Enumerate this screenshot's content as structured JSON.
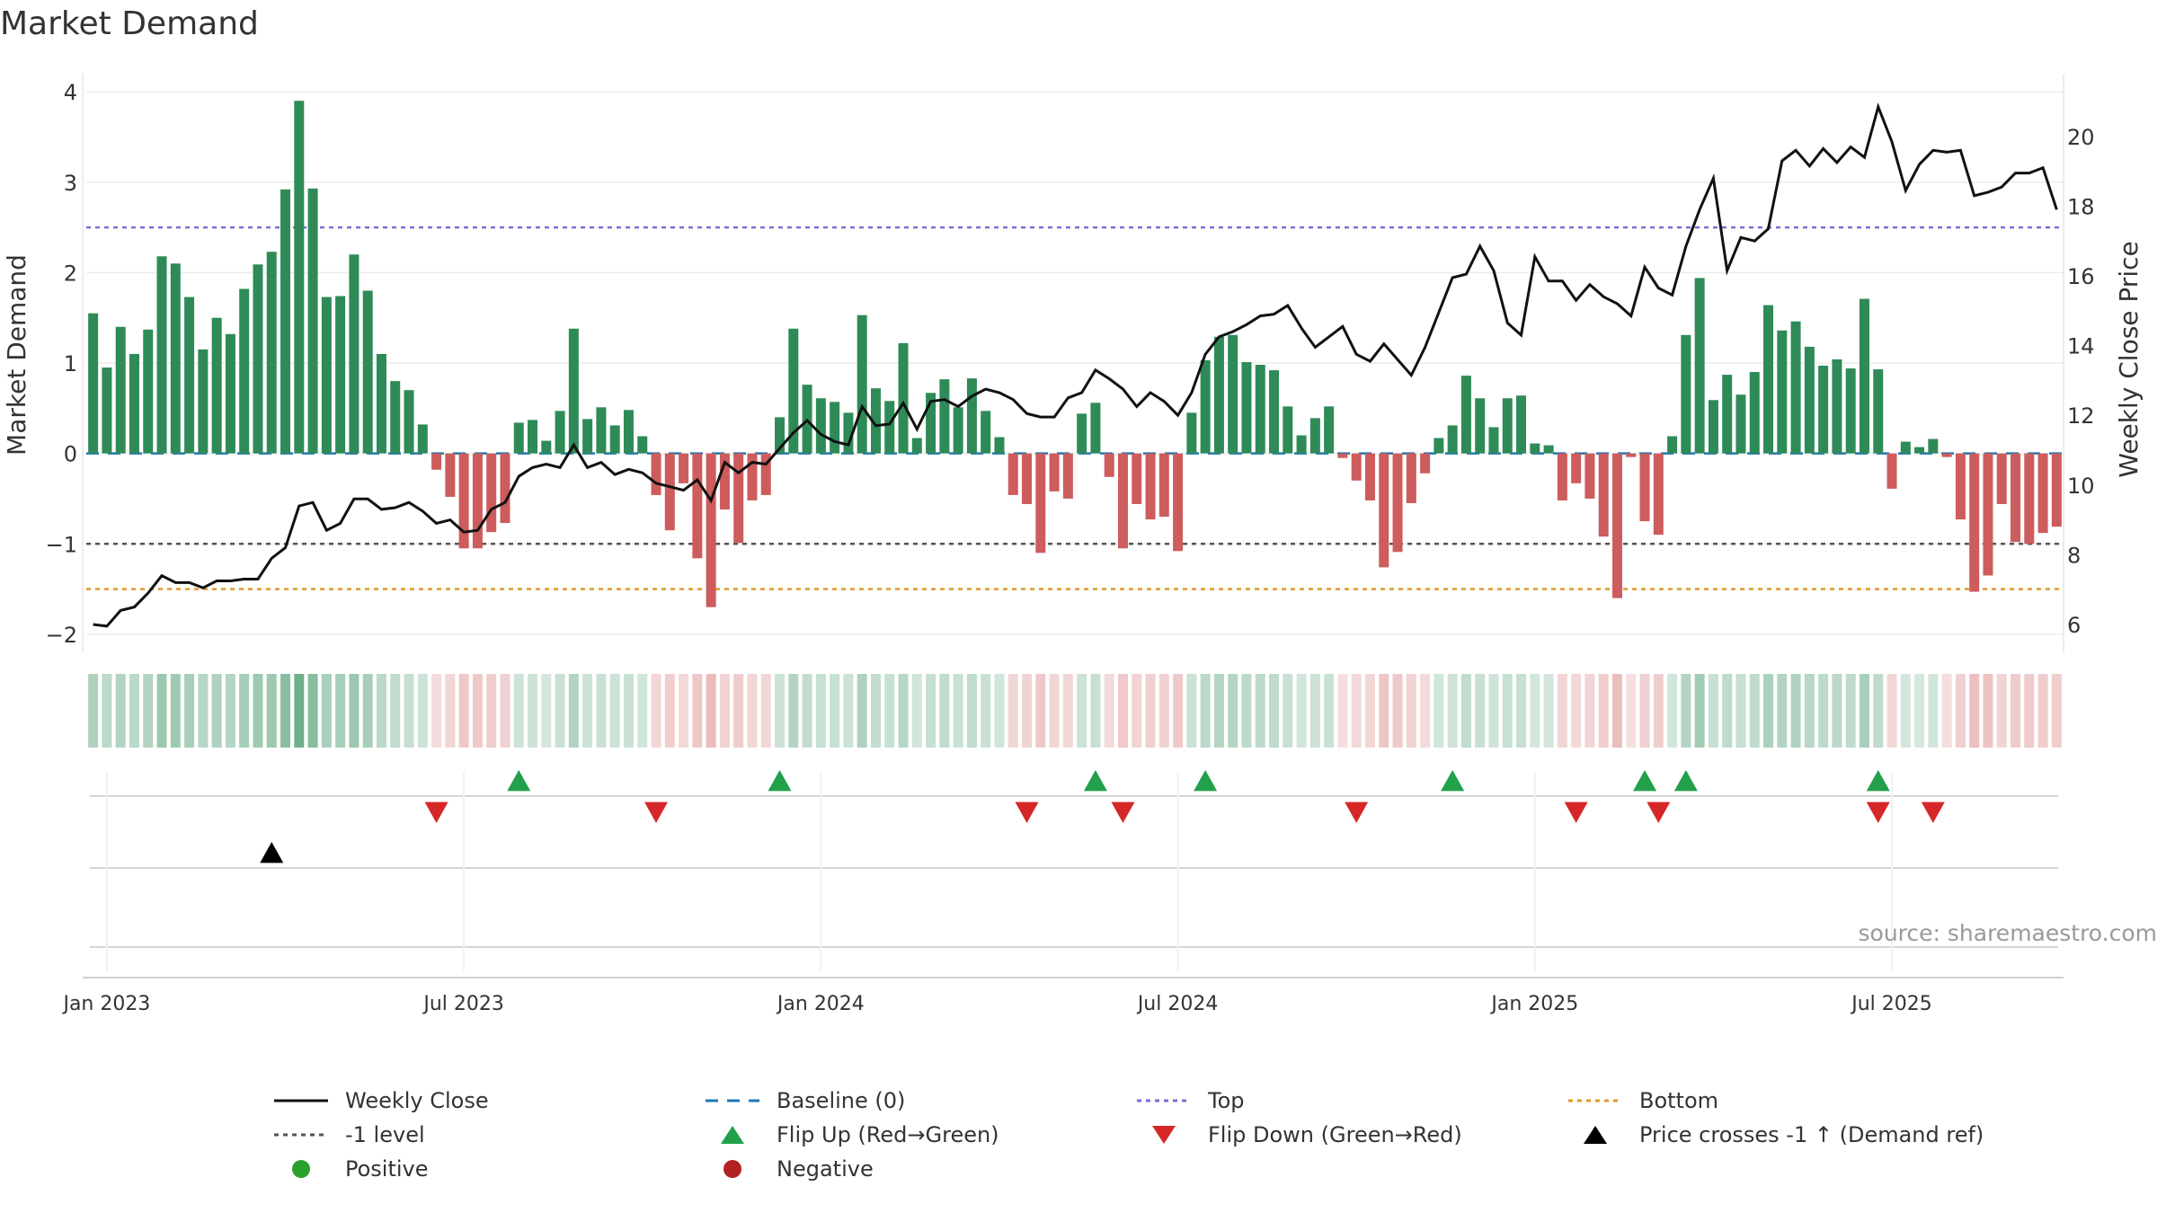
{
  "title": "Market Demand",
  "source_text": "source: sharemaestro.com",
  "colors": {
    "positive": "#2e8b57",
    "negative": "#cd5c5c",
    "line": "#111111",
    "top": "#7b6fd6",
    "bottom": "#e09a2a",
    "minus1": "#555555",
    "baseline": "#1f77b4",
    "flip_up": "#22a04a",
    "flip_down": "#d62728",
    "cross": "#000000",
    "positive_dot": "#2ca02c",
    "negative_dot": "#b22222"
  },
  "chart_data": {
    "type": "bar+line",
    "title": "Market Demand",
    "ylabel_left": "Market Demand",
    "ylabel_right": "Weekly Close Price",
    "y_left_ticks": [
      "4",
      "3",
      "2",
      "1",
      "0",
      "−1",
      "−2"
    ],
    "y_left_tick_values": [
      4,
      3,
      2,
      1,
      0,
      -1,
      -2
    ],
    "y_right_ticks": [
      "20",
      "18",
      "16",
      "14",
      "12",
      "10",
      "8",
      "6"
    ],
    "y_right_tick_values": [
      20,
      18,
      16,
      14,
      12,
      10,
      8,
      6
    ],
    "ylim_left": [
      -2.2,
      4.2
    ],
    "ylim_right": [
      5.2,
      21.8
    ],
    "x_ticks": [
      "Jan 2023",
      "Jul 2023",
      "Jan 2024",
      "Jul 2024",
      "Jan 2025",
      "Jul 2025"
    ],
    "x_tick_week_index": [
      1.5,
      27.5,
      53.5,
      79.5,
      105.5,
      131.5
    ],
    "reference_lines": {
      "top": 2.5,
      "minus1": -1,
      "bottom": -1.5,
      "baseline": 0
    },
    "demand": [
      1.55,
      0.95,
      1.4,
      1.1,
      1.37,
      2.18,
      2.1,
      1.73,
      1.15,
      1.5,
      1.32,
      1.82,
      2.09,
      2.23,
      2.92,
      3.9,
      2.93,
      1.73,
      1.74,
      2.2,
      1.8,
      1.1,
      0.8,
      0.7,
      0.32,
      -0.18,
      -0.48,
      -1.05,
      -1.05,
      -0.87,
      -0.77,
      0.34,
      0.37,
      0.14,
      0.47,
      1.38,
      0.38,
      0.51,
      0.31,
      0.48,
      0.19,
      -0.46,
      -0.85,
      -0.33,
      -1.16,
      -1.7,
      -0.62,
      -0.99,
      -0.52,
      -0.46,
      0.4,
      1.38,
      0.76,
      0.61,
      0.57,
      0.45,
      1.53,
      0.72,
      0.58,
      1.22,
      0.17,
      0.67,
      0.82,
      0.51,
      0.83,
      0.47,
      0.18,
      -0.46,
      -0.56,
      -1.1,
      -0.42,
      -0.5,
      0.44,
      0.56,
      -0.26,
      -1.05,
      -0.56,
      -0.73,
      -0.7,
      -1.08,
      0.45,
      1.03,
      1.29,
      1.31,
      1.01,
      0.98,
      0.92,
      0.52,
      0.2,
      0.39,
      0.52,
      -0.05,
      -0.3,
      -0.52,
      -1.26,
      -1.09,
      -0.55,
      -0.22,
      0.17,
      0.31,
      0.86,
      0.61,
      0.29,
      0.61,
      0.64,
      0.11,
      0.09,
      -0.52,
      -0.33,
      -0.5,
      -0.92,
      -1.6,
      -0.04,
      -0.75,
      -0.9,
      0.19,
      1.31,
      1.94,
      0.59,
      0.87,
      0.65,
      0.9,
      1.64,
      1.36,
      1.46,
      1.18,
      0.97,
      1.04,
      0.94,
      1.71,
      0.93,
      -0.39,
      0.13,
      0.07,
      0.16,
      -0.04,
      -0.73,
      -1.53,
      -1.35,
      -0.56,
      -0.98,
      -1.0,
      -0.88,
      -0.81
    ],
    "weekly_close": [
      6.0,
      5.95,
      6.4,
      6.5,
      6.9,
      7.4,
      7.2,
      7.2,
      7.05,
      7.25,
      7.25,
      7.3,
      7.3,
      7.9,
      8.2,
      9.4,
      9.5,
      8.7,
      8.9,
      9.6,
      9.6,
      9.3,
      9.35,
      9.5,
      9.25,
      8.9,
      9.0,
      8.65,
      8.7,
      9.3,
      9.5,
      10.25,
      10.5,
      10.6,
      10.5,
      11.15,
      10.5,
      10.65,
      10.3,
      10.45,
      10.35,
      10.05,
      9.95,
      9.85,
      10.15,
      9.55,
      10.65,
      10.35,
      10.65,
      10.6,
      11.05,
      11.5,
      11.85,
      11.45,
      11.25,
      11.15,
      12.25,
      11.7,
      11.75,
      12.35,
      11.6,
      12.4,
      12.45,
      12.25,
      12.55,
      12.75,
      12.65,
      12.45,
      12.05,
      11.95,
      11.95,
      12.5,
      12.65,
      13.3,
      13.05,
      12.75,
      12.25,
      12.65,
      12.4,
      12.0,
      12.65,
      13.75,
      14.25,
      14.4,
      14.6,
      14.85,
      14.9,
      15.15,
      14.5,
      13.95,
      14.25,
      14.55,
      13.75,
      13.55,
      14.05,
      13.6,
      13.15,
      13.95,
      14.95,
      15.95,
      16.05,
      16.85,
      16.15,
      14.65,
      14.3,
      16.55,
      15.85,
      15.85,
      15.3,
      15.75,
      15.4,
      15.2,
      14.85,
      16.25,
      15.65,
      15.45,
      16.85,
      17.9,
      18.8,
      16.15,
      17.1,
      17.0,
      17.35,
      19.3,
      19.6,
      19.15,
      19.65,
      19.25,
      19.7,
      19.4,
      20.85,
      19.85,
      18.45,
      19.2,
      19.6,
      19.55,
      19.6,
      18.3,
      18.4,
      18.55,
      18.95,
      18.95,
      19.1,
      17.9
    ],
    "flip_up_weeks": [
      31,
      50,
      73,
      81,
      99,
      113,
      116,
      130
    ],
    "flip_down_weeks": [
      25,
      41,
      68,
      75,
      92,
      108,
      114,
      130,
      134
    ],
    "price_cross_weeks": [
      13
    ]
  },
  "legend": [
    {
      "label": "Weekly Close",
      "symbol": "solid-line"
    },
    {
      "label": "Baseline (0)",
      "symbol": "dashed-line"
    },
    {
      "label": "Top",
      "symbol": "dotted-line"
    },
    {
      "label": "Bottom",
      "symbol": "dotted-line"
    },
    {
      "label": "-1 level",
      "symbol": "dotted-line"
    },
    {
      "label": "Flip Up (Red→Green)",
      "symbol": "triangle-up"
    },
    {
      "label": "Flip Down (Green→Red)",
      "symbol": "triangle-down"
    },
    {
      "label": "Price crosses -1 ↑ (Demand ref)",
      "symbol": "triangle-up"
    },
    {
      "label": "Positive",
      "symbol": "dot"
    },
    {
      "label": "Negative",
      "symbol": "dot"
    }
  ]
}
